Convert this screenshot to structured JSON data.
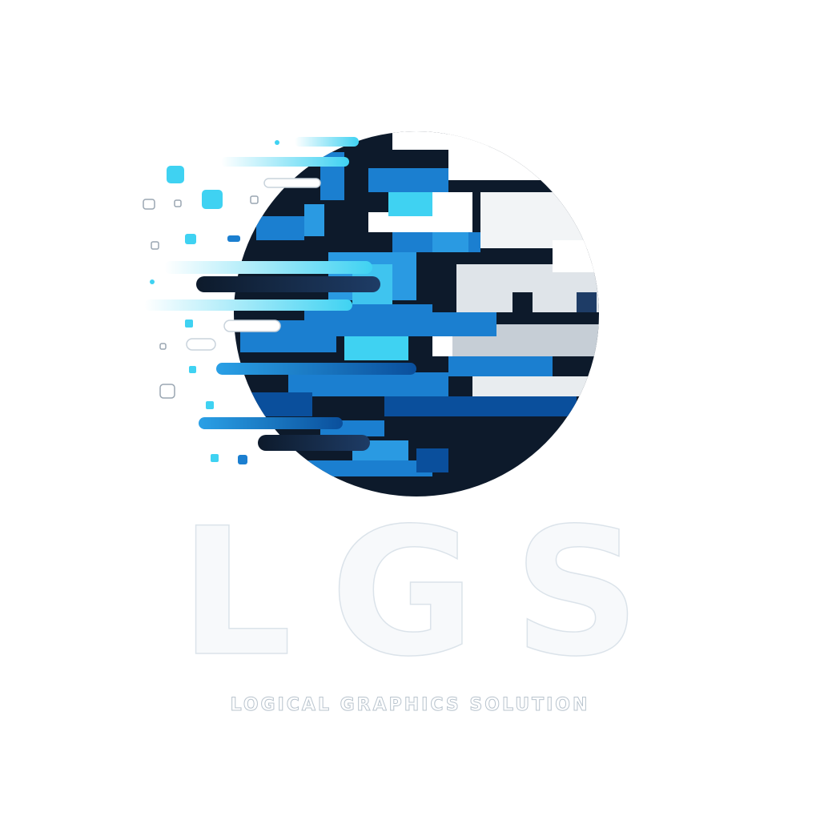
{
  "brand": {
    "wordmark": "LGS",
    "tagline": "LOGICAL GRAPHICS SOLUTION"
  },
  "colors": {
    "navy": "#0d1a2b",
    "blue": "#1b7fd0",
    "deep_blue": "#0a4f9c",
    "cyan": "#3fd2f2",
    "light_gray": "#dfe4e9",
    "white": "#ffffff"
  },
  "icons": [
    "pixel-globe-icon"
  ]
}
